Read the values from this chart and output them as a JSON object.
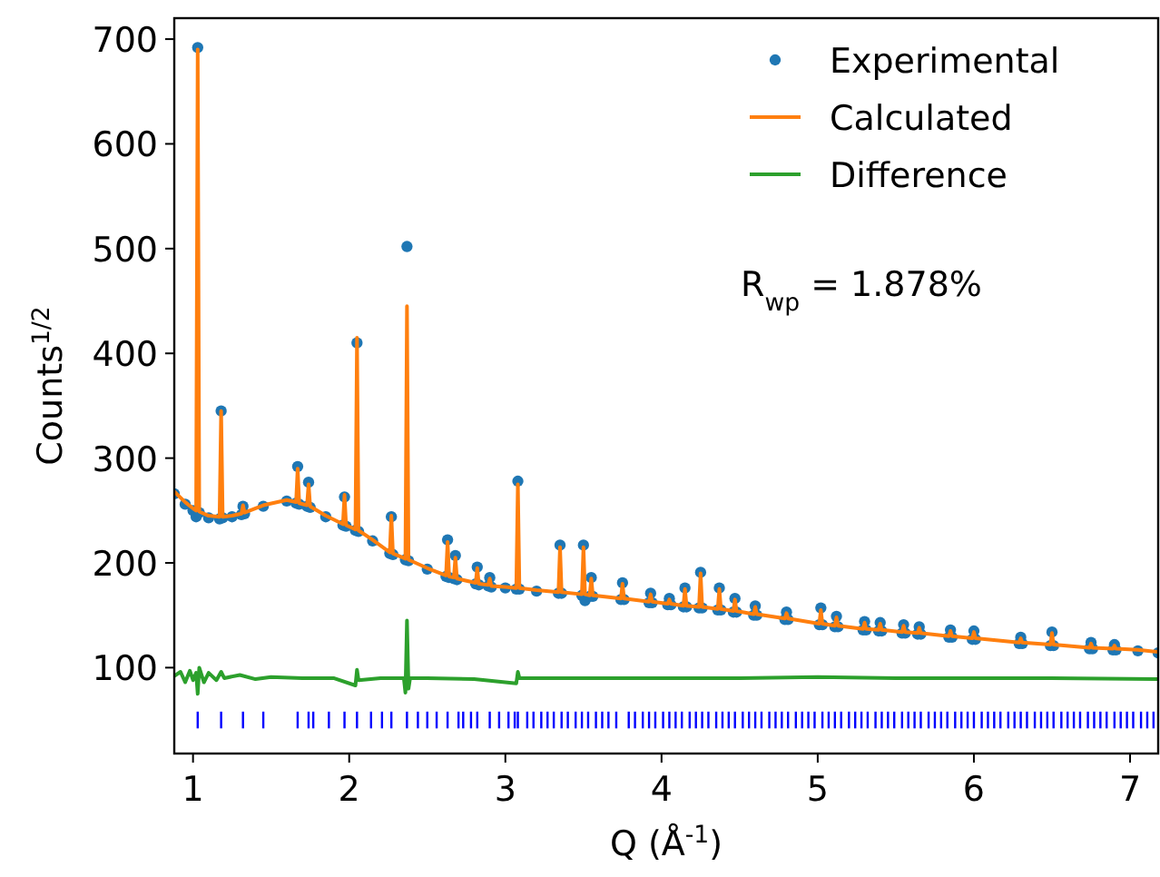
{
  "chart_data": {
    "type": "line",
    "xlabel": "Q (Å$^{-1}$)",
    "ylabel": "Counts$^{1/2}$",
    "xlim": [
      0.88,
      7.18
    ],
    "ylim": [
      18,
      720
    ],
    "xticks": [
      1,
      2,
      3,
      4,
      5,
      6,
      7
    ],
    "yticks": [
      100,
      200,
      300,
      400,
      500,
      600,
      700
    ],
    "grid": false,
    "legend": "top right",
    "annotations": [
      "R$_{wp}$ = 1.878%"
    ],
    "series": [
      {
        "name": "Experimental",
        "type": "scatter",
        "marker": "circle",
        "color": "#1f77b4",
        "x": [
          0.88,
          0.95,
          1.0,
          1.02,
          1.03,
          1.04,
          1.1,
          1.17,
          1.18,
          1.19,
          1.25,
          1.31,
          1.32,
          1.33,
          1.45,
          1.6,
          1.66,
          1.67,
          1.68,
          1.73,
          1.74,
          1.75,
          1.85,
          1.96,
          1.97,
          1.98,
          2.04,
          2.05,
          2.06,
          2.15,
          2.26,
          2.27,
          2.28,
          2.36,
          2.37,
          2.38,
          2.5,
          2.62,
          2.63,
          2.64,
          2.67,
          2.68,
          2.69,
          2.81,
          2.82,
          2.83,
          2.89,
          2.9,
          2.91,
          3.0,
          3.07,
          3.08,
          3.09,
          3.2,
          3.34,
          3.35,
          3.36,
          3.49,
          3.5,
          3.51,
          3.54,
          3.55,
          3.56,
          3.74,
          3.75,
          3.76,
          3.92,
          3.93,
          3.94,
          4.04,
          4.05,
          4.06,
          4.14,
          4.15,
          4.16,
          4.24,
          4.25,
          4.26,
          4.36,
          4.37,
          4.38,
          4.46,
          4.47,
          4.48,
          4.59,
          4.6,
          4.61,
          4.79,
          4.8,
          4.81,
          5.01,
          5.02,
          5.03,
          5.11,
          5.12,
          5.13,
          5.29,
          5.3,
          5.31,
          5.39,
          5.4,
          5.41,
          5.54,
          5.55,
          5.56,
          5.64,
          5.65,
          5.66,
          5.84,
          5.85,
          5.86,
          5.99,
          6.0,
          6.01,
          6.29,
          6.3,
          6.31,
          6.49,
          6.5,
          6.51,
          6.74,
          6.75,
          6.76,
          6.89,
          6.9,
          6.91,
          7.05,
          7.18
        ],
        "values": [
          266,
          256,
          250,
          244,
          692,
          248,
          243,
          242,
          345,
          243,
          244,
          246,
          254,
          247,
          254,
          259,
          257,
          292,
          256,
          254,
          277,
          253,
          244,
          236,
          263,
          235,
          231,
          410,
          230,
          221,
          209,
          244,
          208,
          203,
          502,
          202,
          194,
          187,
          222,
          186,
          185,
          207,
          184,
          180,
          196,
          179,
          178,
          186,
          177,
          176,
          175,
          278,
          175,
          173,
          171,
          217,
          171,
          169,
          217,
          164,
          168,
          186,
          168,
          165,
          181,
          165,
          162,
          171,
          162,
          160,
          166,
          160,
          158,
          176,
          158,
          157,
          191,
          157,
          155,
          176,
          155,
          153,
          166,
          153,
          150,
          159,
          150,
          146,
          153,
          146,
          141,
          157,
          141,
          139,
          149,
          139,
          136,
          144,
          136,
          135,
          143,
          135,
          133,
          141,
          133,
          132,
          139,
          132,
          129,
          136,
          129,
          127,
          135,
          127,
          123,
          129,
          123,
          121,
          134,
          121,
          118,
          124,
          118,
          117,
          122,
          117,
          116,
          114
        ]
      },
      {
        "name": "Calculated",
        "color": "#ff7f0e",
        "x": [
          0.88,
          0.95,
          1.0,
          1.02,
          1.03,
          1.04,
          1.1,
          1.17,
          1.18,
          1.19,
          1.25,
          1.31,
          1.32,
          1.33,
          1.45,
          1.6,
          1.66,
          1.67,
          1.68,
          1.73,
          1.74,
          1.75,
          1.85,
          1.96,
          1.97,
          1.98,
          2.04,
          2.05,
          2.06,
          2.15,
          2.26,
          2.27,
          2.28,
          2.36,
          2.37,
          2.38,
          2.5,
          2.62,
          2.63,
          2.64,
          2.67,
          2.68,
          2.69,
          2.81,
          2.82,
          2.83,
          2.89,
          2.9,
          2.91,
          3.0,
          3.07,
          3.08,
          3.09,
          3.2,
          3.34,
          3.35,
          3.36,
          3.49,
          3.5,
          3.51,
          3.54,
          3.55,
          3.56,
          3.74,
          3.75,
          3.76,
          3.92,
          3.93,
          3.94,
          4.04,
          4.05,
          4.06,
          4.14,
          4.15,
          4.16,
          4.24,
          4.25,
          4.26,
          4.36,
          4.37,
          4.38,
          4.46,
          4.47,
          4.48,
          4.59,
          4.6,
          4.61,
          4.79,
          4.8,
          4.81,
          5.01,
          5.02,
          5.03,
          5.11,
          5.12,
          5.13,
          5.29,
          5.3,
          5.31,
          5.39,
          5.4,
          5.41,
          5.54,
          5.55,
          5.56,
          5.64,
          5.65,
          5.66,
          5.84,
          5.85,
          5.86,
          5.99,
          6.0,
          6.01,
          6.29,
          6.3,
          6.31,
          6.49,
          6.5,
          6.51,
          6.74,
          6.75,
          6.76,
          6.89,
          6.9,
          6.91,
          7.05,
          7.18
        ],
        "values": [
          268,
          258,
          252,
          250,
          690,
          249,
          245,
          244,
          345,
          244,
          245,
          247,
          255,
          248,
          255,
          260,
          258,
          290,
          257,
          255,
          275,
          254,
          245,
          237,
          265,
          236,
          232,
          415,
          231,
          222,
          210,
          245,
          209,
          204,
          445,
          203,
          195,
          188,
          220,
          187,
          186,
          205,
          185,
          181,
          195,
          180,
          179,
          185,
          178,
          177,
          176,
          275,
          176,
          174,
          172,
          215,
          172,
          170,
          215,
          170,
          169,
          185,
          169,
          166,
          180,
          166,
          163,
          170,
          163,
          161,
          165,
          161,
          159,
          175,
          159,
          158,
          190,
          158,
          156,
          175,
          156,
          154,
          165,
          154,
          151,
          158,
          151,
          147,
          152,
          147,
          142,
          155,
          142,
          140,
          148,
          140,
          137,
          143,
          137,
          136,
          142,
          136,
          134,
          140,
          134,
          133,
          138,
          133,
          130,
          135,
          130,
          128,
          134,
          128,
          124,
          128,
          124,
          122,
          133,
          122,
          119,
          123,
          119,
          118,
          121,
          118,
          117,
          115
        ]
      },
      {
        "name": "Difference",
        "type": "line",
        "color": "#2ca02c",
        "x": [
          0.88,
          0.92,
          0.95,
          0.98,
          1.0,
          1.02,
          1.03,
          1.04,
          1.07,
          1.1,
          1.15,
          1.18,
          1.2,
          1.3,
          1.4,
          1.5,
          1.7,
          1.9,
          2.04,
          2.05,
          2.06,
          2.2,
          2.35,
          2.36,
          2.37,
          2.38,
          2.39,
          2.5,
          2.8,
          3.07,
          3.08,
          3.09,
          3.5,
          4.0,
          4.5,
          5.0,
          5.5,
          6.0,
          6.5,
          7.18
        ],
        "values": [
          92,
          96,
          86,
          97,
          88,
          95,
          75,
          100,
          86,
          95,
          88,
          96,
          90,
          93,
          89,
          91,
          90,
          90,
          83,
          98,
          88,
          90,
          90,
          76,
          145,
          80,
          90,
          90,
          89,
          85,
          96,
          90,
          90,
          90,
          90,
          91,
          90,
          90,
          90,
          89
        ]
      },
      {
        "type": "bar",
        "color": "#0000ff",
        "base": [
          42,
          42,
          42,
          42,
          42,
          42,
          42,
          42,
          42,
          42,
          42,
          42,
          42,
          42,
          42,
          42,
          42,
          42,
          42,
          42,
          42,
          42,
          42,
          42,
          42,
          42,
          42,
          42,
          42,
          42,
          42,
          42,
          42,
          42,
          42,
          42,
          42,
          42,
          42,
          42,
          42,
          42,
          42,
          42,
          42,
          42,
          42,
          42,
          42,
          42,
          42,
          42,
          42,
          42,
          42,
          42,
          42,
          42,
          42,
          42,
          42,
          42,
          42,
          42,
          42,
          42,
          42,
          42,
          42,
          42,
          42,
          42,
          42,
          42,
          42,
          42,
          42,
          42,
          42,
          42,
          42,
          42,
          42,
          42,
          42,
          42,
          42,
          42,
          42,
          42,
          42,
          42,
          42,
          42,
          42,
          42,
          42,
          42,
          42,
          42,
          42,
          42,
          42,
          42,
          42,
          42,
          42,
          42,
          42,
          42,
          42,
          42,
          42,
          42,
          42,
          42,
          42,
          42,
          42,
          42,
          42
        ],
        "x": [
          1.03,
          1.18,
          1.32,
          1.45,
          1.67,
          1.74,
          1.77,
          1.87,
          1.97,
          2.05,
          2.14,
          2.21,
          2.27,
          2.37,
          2.44,
          2.5,
          2.56,
          2.63,
          2.7,
          2.73,
          2.78,
          2.82,
          2.9,
          2.96,
          3.02,
          3.06,
          3.08,
          3.14,
          3.18,
          3.23,
          3.27,
          3.31,
          3.36,
          3.4,
          3.45,
          3.49,
          3.53,
          3.58,
          3.62,
          3.66,
          3.71,
          3.79,
          3.83,
          3.88,
          3.92,
          3.96,
          4.01,
          4.05,
          4.09,
          4.13,
          4.18,
          4.22,
          4.26,
          4.3,
          4.35,
          4.39,
          4.43,
          4.47,
          4.52,
          4.56,
          4.6,
          4.64,
          4.69,
          4.73,
          4.77,
          4.81,
          4.86,
          4.9,
          4.94,
          4.98,
          5.03,
          5.07,
          5.11,
          5.15,
          5.2,
          5.24,
          5.28,
          5.32,
          5.37,
          5.41,
          5.45,
          5.49,
          5.54,
          5.58,
          5.62,
          5.66,
          5.71,
          5.75,
          5.79,
          5.83,
          5.88,
          5.92,
          5.96,
          6.0,
          6.05,
          6.09,
          6.13,
          6.17,
          6.22,
          6.26,
          6.3,
          6.34,
          6.39,
          6.43,
          6.47,
          6.51,
          6.56,
          6.6,
          6.64,
          6.68,
          6.73,
          6.77,
          6.81,
          6.85,
          6.9,
          6.94,
          6.98,
          7.02,
          7.07,
          7.11,
          7.15
        ],
        "values": [
          16,
          16,
          16,
          16,
          16,
          16,
          16,
          16,
          16,
          16,
          16,
          16,
          16,
          16,
          16,
          16,
          16,
          16,
          16,
          16,
          16,
          16,
          16,
          16,
          16,
          16,
          16,
          16,
          16,
          16,
          16,
          16,
          16,
          16,
          16,
          16,
          16,
          16,
          16,
          16,
          16,
          16,
          16,
          16,
          16,
          16,
          16,
          16,
          16,
          16,
          16,
          16,
          16,
          16,
          16,
          16,
          16,
          16,
          16,
          16,
          16,
          16,
          16,
          16,
          16,
          16,
          16,
          16,
          16,
          16,
          16,
          16,
          16,
          16,
          16,
          16,
          16,
          16,
          16,
          16,
          16,
          16,
          16,
          16,
          16,
          16,
          16,
          16,
          16,
          16,
          16,
          16,
          16,
          16,
          16,
          16,
          16,
          16,
          16,
          16,
          16,
          16,
          16,
          16,
          16,
          16,
          16,
          16,
          16,
          16,
          16,
          16,
          16,
          16,
          16,
          16,
          16,
          16,
          16,
          16,
          16
        ]
      }
    ]
  }
}
